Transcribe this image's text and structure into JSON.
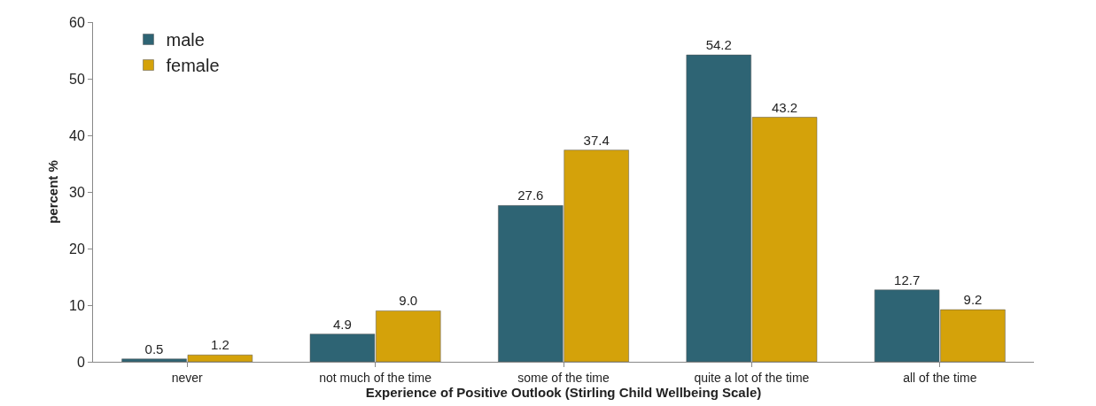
{
  "chart_data": {
    "type": "bar",
    "xlabel": "Experience of Positive Outlook (Stirling Child Wellbeing Scale)",
    "ylabel": "percent %",
    "categories": [
      "never",
      "not much of the time",
      "some of the time",
      "quite a lot of the time",
      "all of the time"
    ],
    "series": [
      {
        "name": "male",
        "color": "#2e6474",
        "values": [
          0.5,
          4.9,
          27.6,
          54.2,
          12.7
        ],
        "value_labels": [
          "0.5",
          "4.9",
          "27.6",
          "54.2",
          "12.7"
        ]
      },
      {
        "name": "female",
        "color": "#d4a20a",
        "values": [
          1.2,
          9.0,
          37.4,
          43.2,
          9.2
        ],
        "value_labels": [
          "1.2",
          "9.0",
          "37.4",
          "43.2",
          "9.2"
        ]
      }
    ],
    "ylim": [
      0,
      60
    ],
    "yticks": [
      0,
      10,
      20,
      30,
      40,
      50,
      60
    ],
    "grid": false,
    "legend": "top left"
  }
}
